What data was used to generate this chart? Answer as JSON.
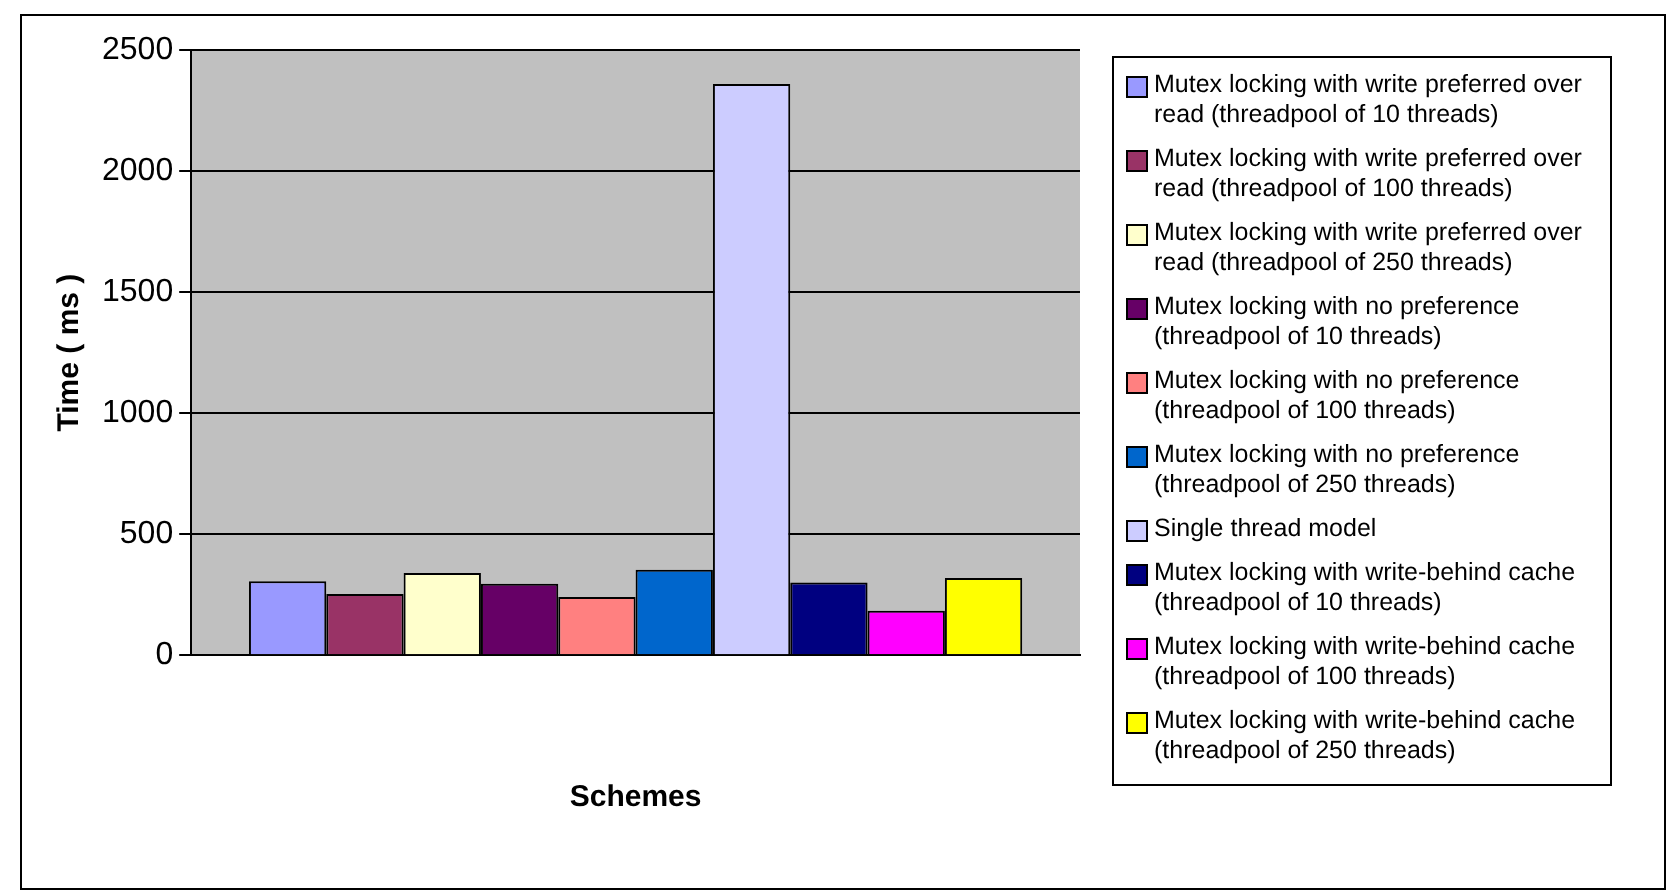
{
  "chart_data": {
    "type": "bar",
    "xlabel": "Schemes",
    "ylabel": "Time ( ms )",
    "categories": [
      null
    ],
    "series": [
      {
        "name": "Mutex locking with write preferred over read (threadpool of 10 threads)",
        "color": "#9999ff",
        "values": [
          305
        ]
      },
      {
        "name": "Mutex locking with write preferred over read (threadpool of 100 threads)",
        "color": "#993366",
        "values": [
          253
        ]
      },
      {
        "name": "Mutex locking with write preferred over read (threadpool of 250 threads)",
        "color": "#ffffcc",
        "values": [
          340
        ]
      },
      {
        "name": "Mutex locking with no preference (threadpool of 10 threads)",
        "color": "#660066",
        "values": [
          295
        ]
      },
      {
        "name": "Mutex locking with no preference (threadpool of 100 threads)",
        "color": "#ff8080",
        "values": [
          240
        ]
      },
      {
        "name": "Mutex locking with no preference (threadpool of 250 threads)",
        "color": "#0066cc",
        "values": [
          353
        ]
      },
      {
        "name": "Single thread model",
        "color": "#ccccff",
        "values": [
          2360
        ]
      },
      {
        "name": "Mutex locking with write-behind cache (threadpool of 10 threads)",
        "color": "#000080",
        "values": [
          300
        ]
      },
      {
        "name": "Mutex locking with write-behind cache (threadpool of 100 threads)",
        "color": "#ff00ff",
        "values": [
          184
        ]
      },
      {
        "name": "Mutex locking with write-behind cache (threadpool of 250 threads)",
        "color": "#ffff00",
        "values": [
          319
        ]
      }
    ],
    "ylim": [
      0,
      2500
    ],
    "yticks": [
      0,
      500,
      1000,
      1500,
      2000,
      2500
    ],
    "grid": "y",
    "legend": "right"
  }
}
